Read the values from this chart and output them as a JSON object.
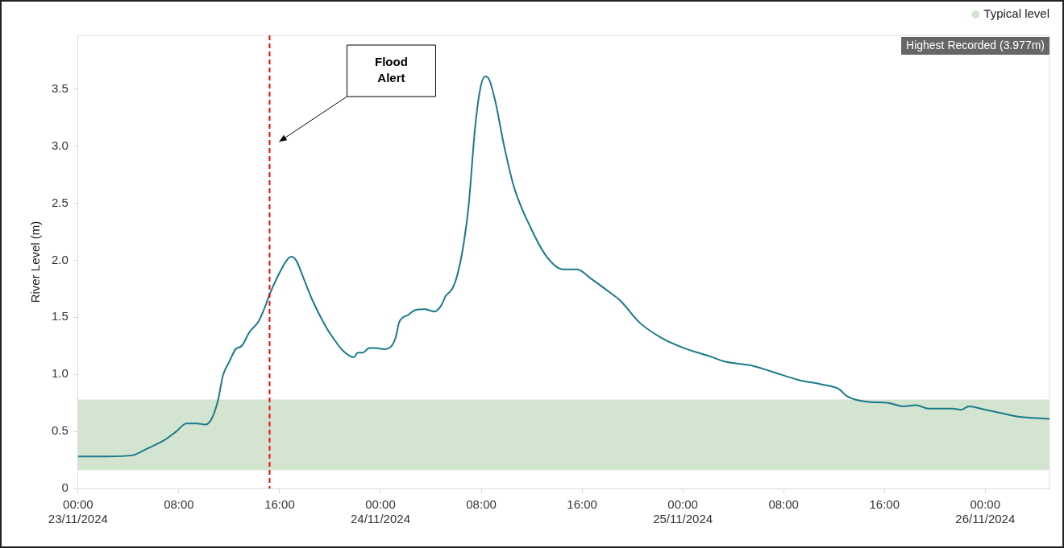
{
  "chart_data": {
    "type": "line",
    "ylabel": "River Level (m)",
    "x": [
      "2024-11-23T00:00",
      "2024-11-23T02:18",
      "2024-11-23T04:18",
      "2024-11-23T05:30",
      "2024-11-23T06:48",
      "2024-11-23T07:48",
      "2024-11-23T08:36",
      "2024-11-23T09:24",
      "2024-11-23T10:06",
      "2024-11-23T10:36",
      "2024-11-23T11:06",
      "2024-11-23T11:30",
      "2024-11-23T12:00",
      "2024-11-23T12:30",
      "2024-11-23T13:00",
      "2024-11-23T13:36",
      "2024-11-23T14:18",
      "2024-11-23T14:48",
      "2024-11-23T15:12",
      "2024-11-23T15:54",
      "2024-11-23T16:30",
      "2024-11-23T16:54",
      "2024-11-23T17:18",
      "2024-11-23T17:48",
      "2024-11-23T18:36",
      "2024-11-23T19:42",
      "2024-11-23T20:18",
      "2024-11-23T21:00",
      "2024-11-23T21:54",
      "2024-11-23T22:12",
      "2024-11-23T22:36",
      "2024-11-23T23:06",
      "2024-11-23T23:36",
      "2024-11-24T00:18",
      "2024-11-24T00:54",
      "2024-11-24T01:12",
      "2024-11-24T01:30",
      "2024-11-24T02:12",
      "2024-11-24T02:42",
      "2024-11-24T03:30",
      "2024-11-24T04:18",
      "2024-11-24T04:48",
      "2024-11-24T05:12",
      "2024-11-24T05:42",
      "2024-11-24T06:06",
      "2024-11-24T06:36",
      "2024-11-24T07:00",
      "2024-11-24T07:30",
      "2024-11-24T07:54",
      "2024-11-24T08:18",
      "2024-11-24T08:36",
      "2024-11-24T09:06",
      "2024-11-24T09:48",
      "2024-11-24T10:36",
      "2024-11-24T11:54",
      "2024-11-24T13:12",
      "2024-11-24T14:30",
      "2024-11-24T15:36",
      "2024-11-24T16:42",
      "2024-11-24T18:18",
      "2024-11-24T19:00",
      "2024-11-24T20:36",
      "2024-11-24T22:18",
      "2024-11-25T00:06",
      "2024-11-25T02:06",
      "2024-11-25T03:24",
      "2024-11-25T05:18",
      "2024-11-25T06:54",
      "2024-11-25T09:12",
      "2024-11-25T11:06",
      "2024-11-25T12:24",
      "2024-11-25T13:00",
      "2024-11-25T14:36",
      "2024-11-25T16:18",
      "2024-11-25T17:30",
      "2024-11-25T18:30",
      "2024-11-25T19:30",
      "2024-11-25T21:24",
      "2024-11-25T22:06",
      "2024-11-25T22:42",
      "2024-11-26T00:00",
      "2024-11-26T01:18",
      "2024-11-26T02:36",
      "2024-11-26T05:06"
    ],
    "series": [
      {
        "color": "#1a7a8a",
        "values": [
          0.28,
          0.28,
          0.29,
          0.35,
          0.42,
          0.5,
          0.57,
          0.57,
          0.56,
          0.61,
          0.77,
          0.99,
          1.11,
          1.22,
          1.25,
          1.37,
          1.46,
          1.58,
          1.7,
          1.87,
          1.99,
          2.03,
          2.0,
          1.87,
          1.65,
          1.41,
          1.31,
          1.21,
          1.15,
          1.19,
          1.19,
          1.23,
          1.23,
          1.22,
          1.25,
          1.32,
          1.46,
          1.52,
          1.56,
          1.57,
          1.55,
          1.6,
          1.69,
          1.75,
          1.87,
          2.14,
          2.48,
          3.15,
          3.49,
          3.61,
          3.59,
          3.4,
          3.01,
          2.64,
          2.29,
          2.03,
          1.92,
          1.92,
          1.84,
          1.71,
          1.65,
          1.45,
          1.32,
          1.23,
          1.16,
          1.11,
          1.08,
          1.03,
          0.95,
          0.91,
          0.87,
          0.81,
          0.76,
          0.75,
          0.72,
          0.73,
          0.7,
          0.7,
          0.69,
          0.72,
          0.69,
          0.66,
          0.63,
          0.61
        ]
      }
    ],
    "xlim": [
      "2024-11-23T00:00",
      "2024-11-26T05:06"
    ],
    "xticks": [
      {
        "value": "2024-11-23T00:00",
        "label": "00:00\n23/11/2024"
      },
      {
        "value": "2024-11-23T08:00",
        "label": "08:00"
      },
      {
        "value": "2024-11-23T16:00",
        "label": "16:00"
      },
      {
        "value": "2024-11-24T00:00",
        "label": "00:00\n24/11/2024"
      },
      {
        "value": "2024-11-24T08:00",
        "label": "08:00"
      },
      {
        "value": "2024-11-24T16:00",
        "label": "16:00"
      },
      {
        "value": "2024-11-25T00:00",
        "label": "00:00\n25/11/2024"
      },
      {
        "value": "2024-11-25T08:00",
        "label": "08:00"
      },
      {
        "value": "2024-11-25T16:00",
        "label": "16:00"
      },
      {
        "value": "2024-11-26T00:00",
        "label": "00:00\n26/11/2024"
      }
    ],
    "ylim": [
      0,
      3.97
    ],
    "yticks": [
      0,
      0.5,
      {
        "value": 1,
        "label": "1.0"
      },
      1.5,
      {
        "value": 2,
        "label": "2.0"
      },
      2.5,
      {
        "value": 3,
        "label": "3.0"
      },
      3.5
    ],
    "bands": [
      {
        "axis": "y",
        "from": 0.16,
        "to": 0.78,
        "label": "Typical level",
        "color": "#d3e4d1"
      }
    ],
    "ref_lines": [
      {
        "axis": "x",
        "value": "2024-11-23T15:12",
        "color": "#ff0000",
        "line_style": "dashed"
      }
    ],
    "annotations": [
      "Highest Recorded (3.977m)",
      "Flood Alert"
    ],
    "legend": "top right",
    "grid": false,
    "marker": "none",
    "line_style": "solid"
  }
}
